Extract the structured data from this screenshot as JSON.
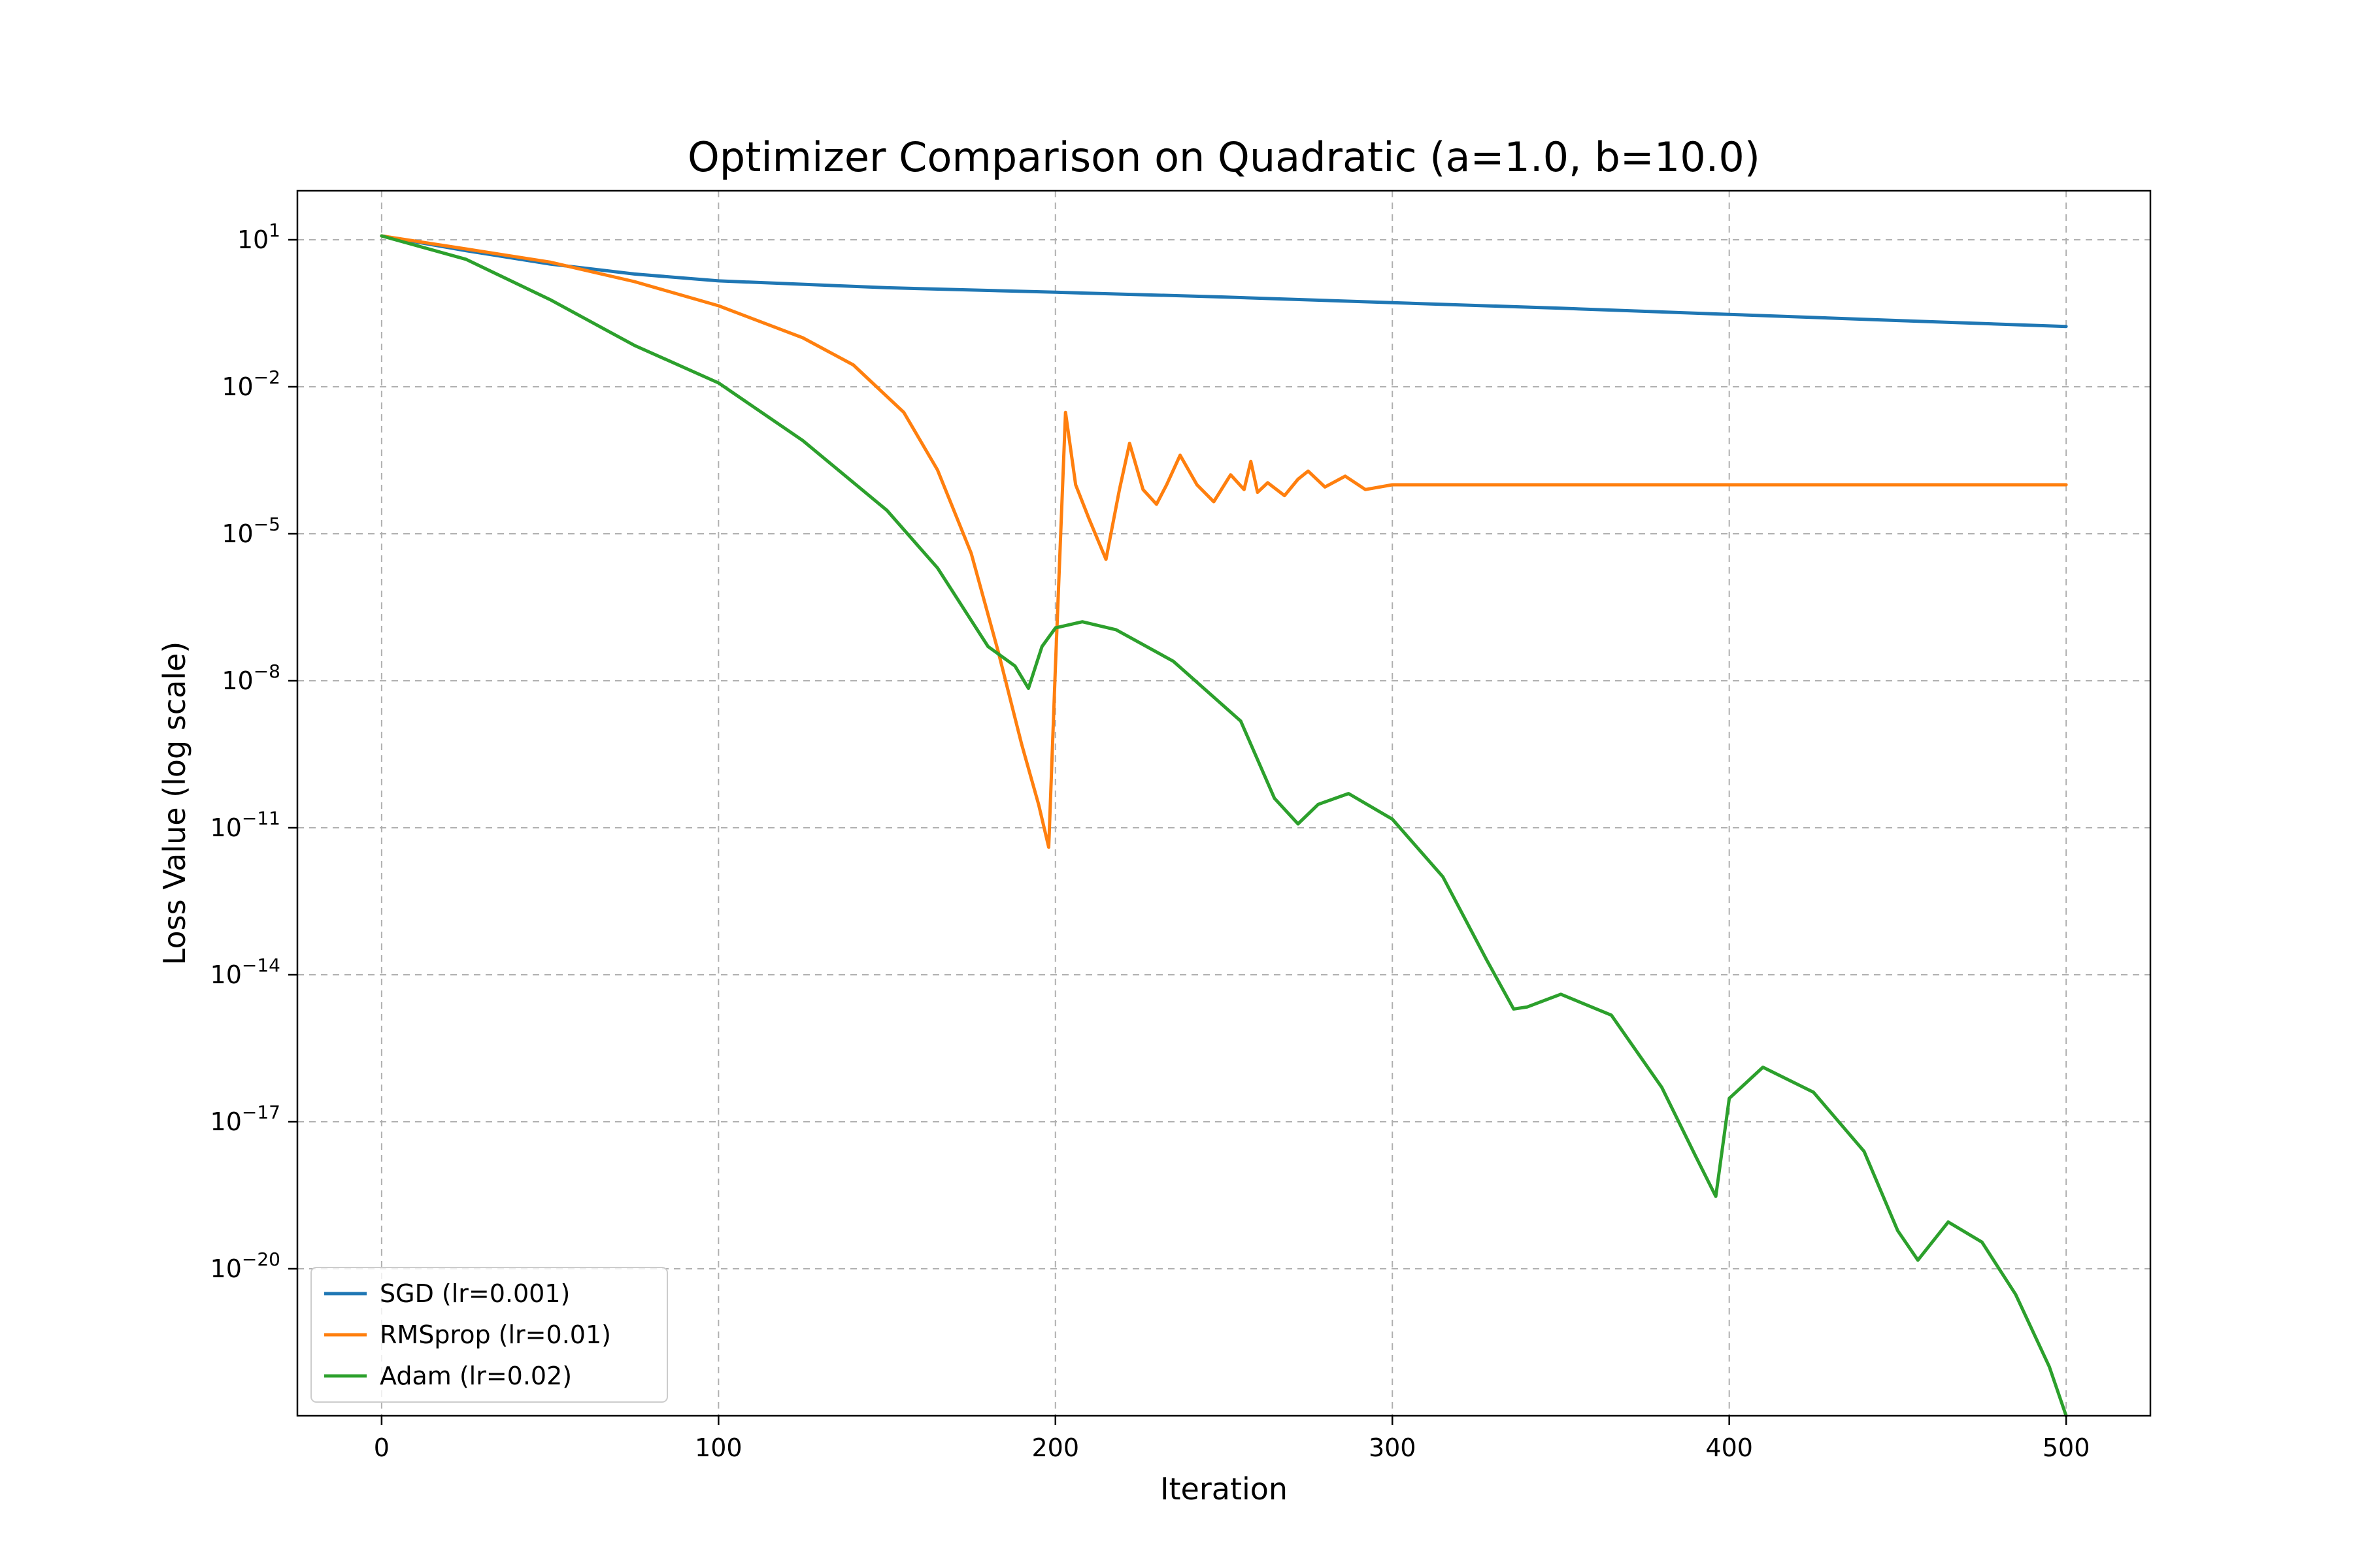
{
  "chart_data": {
    "type": "line",
    "title": "Optimizer Comparison on Quadratic (a=1.0, b=10.0)",
    "xlabel": "Iteration",
    "ylabel": "Loss Value (log scale)",
    "yscale": "log",
    "xlim": [
      -25,
      525
    ],
    "ylim": [
      1e-23,
      100.0
    ],
    "xticks": [
      0,
      100,
      200,
      300,
      400,
      500
    ],
    "xtick_labels": [
      "0",
      "100",
      "200",
      "300",
      "400",
      "500"
    ],
    "yticks": [
      {
        "value": 10,
        "base": "10",
        "exp": "1"
      },
      {
        "value": 0.01,
        "base": "10",
        "exp": "−2"
      },
      {
        "value": 1e-05,
        "base": "10",
        "exp": "−5"
      },
      {
        "value": 1e-08,
        "base": "10",
        "exp": "−8"
      },
      {
        "value": 1e-11,
        "base": "10",
        "exp": "−11"
      },
      {
        "value": 1e-14,
        "base": "10",
        "exp": "−14"
      },
      {
        "value": 1e-17,
        "base": "10",
        "exp": "−17"
      },
      {
        "value": 1e-20,
        "base": "10",
        "exp": "−20"
      }
    ],
    "grid": true,
    "legend_position": "lower-left",
    "series": [
      {
        "name": "SGD (lr=0.001)",
        "color": "#1f77b4",
        "x": [
          0,
          25,
          50,
          75,
          100,
          150,
          200,
          250,
          300,
          350,
          400,
          450,
          500
        ],
        "y": [
          12,
          6,
          3.2,
          2.0,
          1.45,
          1.05,
          0.85,
          0.68,
          0.52,
          0.4,
          0.3,
          0.225,
          0.17
        ]
      },
      {
        "name": "RMSprop (lr=0.01)",
        "color": "#ff7f0e",
        "x": [
          0,
          25,
          50,
          75,
          100,
          125,
          140,
          155,
          165,
          175,
          183,
          190,
          195,
          198,
          200,
          203,
          206,
          210,
          215,
          219,
          222,
          226,
          230,
          233,
          237,
          242,
          247,
          252,
          256,
          258,
          260,
          263,
          268,
          272,
          275,
          280,
          286,
          292,
          300,
          320,
          350,
          400,
          450,
          500
        ],
        "y": [
          12,
          6.5,
          3.5,
          1.4,
          0.45,
          0.1,
          0.028,
          0.003,
          0.0002,
          4e-06,
          4e-08,
          5e-10,
          3e-11,
          4e-12,
          2e-08,
          0.003,
          0.0001,
          2e-05,
          3e-06,
          8e-05,
          0.0007,
          8e-05,
          4e-05,
          0.0001,
          0.0004,
          0.0001,
          4.5e-05,
          0.00016,
          8e-05,
          0.0003,
          7e-05,
          0.00011,
          6e-05,
          0.00013,
          0.00019,
          9e-05,
          0.00015,
          8e-05,
          0.0001,
          0.0001,
          0.0001,
          0.0001,
          0.0001,
          0.0001
        ]
      },
      {
        "name": "Adam (lr=0.02)",
        "color": "#2ca02c",
        "x": [
          0,
          25,
          50,
          75,
          100,
          125,
          150,
          165,
          180,
          188,
          192,
          196,
          200,
          208,
          218,
          235,
          255,
          265,
          272,
          278,
          287,
          300,
          315,
          328,
          336,
          340,
          350,
          365,
          380,
          390,
          396,
          400,
          410,
          425,
          440,
          450,
          456,
          465,
          475,
          485,
          495,
          500
        ],
        "y": [
          12,
          4,
          0.6,
          0.07,
          0.012,
          0.0008,
          3e-05,
          2e-06,
          5e-08,
          2e-08,
          7e-09,
          5e-08,
          1.2e-07,
          1.6e-07,
          1.1e-07,
          2.5e-08,
          1.5e-09,
          4e-11,
          1.2e-11,
          3e-11,
          5e-11,
          1.5e-11,
          1e-12,
          2e-14,
          2e-15,
          2.2e-15,
          4e-15,
          1.5e-15,
          5e-17,
          2e-18,
          3e-19,
          3e-17,
          1.3e-16,
          4e-17,
          2.5e-18,
          6e-20,
          1.5e-20,
          9e-20,
          3.5e-20,
          3e-21,
          1e-22,
          1e-23
        ]
      }
    ]
  }
}
